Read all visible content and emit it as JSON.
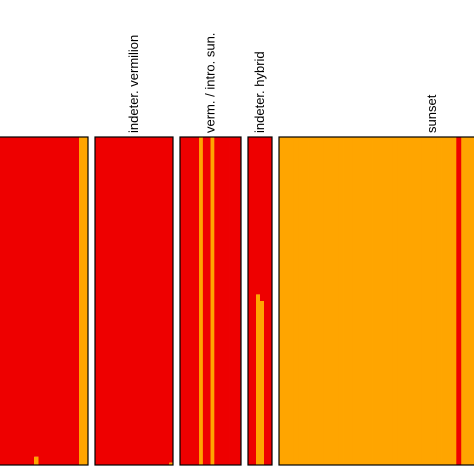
{
  "chart_data": {
    "type": "bar",
    "description_kind": "structure plot (individual ancestry proportions, grouped by population)",
    "colors": {
      "cluster_1": "#ee0000",
      "cluster_2": "#ffa500",
      "panel_border": "#000000"
    },
    "groups": [
      {
        "label": "",
        "individuals": 20,
        "cluster_2_fraction": [
          0,
          0,
          0,
          0,
          0,
          0,
          0,
          0,
          0.025,
          0,
          0,
          0,
          0,
          0,
          0,
          0,
          0,
          0,
          1,
          1
        ]
      },
      {
        "label": "indeter. vermilion",
        "individuals": 20,
        "cluster_2_fraction": [
          0,
          0,
          0,
          0,
          0,
          0,
          0,
          0,
          0,
          0,
          0,
          0,
          0,
          0,
          0,
          0,
          0,
          0,
          0,
          0.007
        ]
      },
      {
        "label": "verm. / intro. sun.",
        "individuals": 16,
        "cluster_2_fraction": [
          0,
          0,
          0,
          0,
          0,
          1,
          0,
          0,
          1,
          0,
          0,
          0,
          0,
          0,
          0,
          0
        ]
      },
      {
        "label": "indeter. hybrid",
        "individuals": 6,
        "cluster_2_fraction": [
          0,
          0,
          0.52,
          0.5,
          0,
          0
        ]
      },
      {
        "label": "sunset",
        "individuals": 40,
        "cluster_2_fraction": [
          1,
          1,
          1,
          1,
          1,
          1,
          1,
          1,
          1,
          1,
          1,
          1,
          1,
          1,
          1,
          1,
          1,
          1,
          1,
          1,
          1,
          1,
          1,
          1,
          1,
          1,
          1,
          1,
          1,
          1,
          1,
          1,
          1,
          1,
          1,
          1,
          0,
          1,
          1,
          1
        ]
      }
    ]
  }
}
